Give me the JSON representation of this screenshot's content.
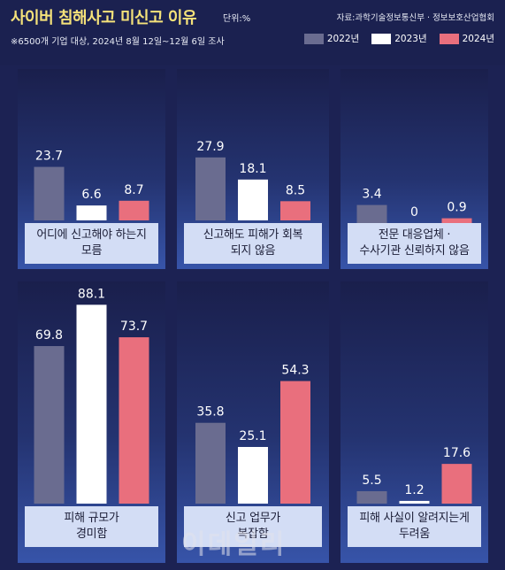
{
  "header": {
    "title": "사이버 침해사고 미신고 이유",
    "unit": "단위:%",
    "source": "자료:과학기술정보통신부 · 정보보호산업협회",
    "note": "※6500개 기업 대상, 2024년 8월 12일~12월 6일 조사"
  },
  "watermark": "이데일리",
  "chart_data": {
    "type": "bar",
    "unit": "%",
    "series": [
      {
        "name": "2022년",
        "color": "#6a6c90"
      },
      {
        "name": "2023년",
        "color": "#ffffff"
      },
      {
        "name": "2024년",
        "color": "#e96f7d"
      }
    ],
    "panels": [
      {
        "caption_lines": [
          "어디에 신고해야 하는지",
          "모름"
        ],
        "values": [
          23.7,
          6.6,
          8.7
        ],
        "labels": [
          "23.7",
          "6.6",
          "8.7"
        ]
      },
      {
        "caption_lines": [
          "신고해도 피해가 회복",
          "되지 않음"
        ],
        "values": [
          27.9,
          18.1,
          8.5
        ],
        "labels": [
          "27.9",
          "18.1",
          "8.5"
        ]
      },
      {
        "caption_lines": [
          "전문 대응업체 ·",
          "수사기관 신뢰하지 않음"
        ],
        "values": [
          3.4,
          0,
          0.9
        ],
        "labels": [
          "3.4",
          "0",
          "0.9"
        ]
      },
      {
        "caption_lines": [
          "피해 규모가",
          "경미함"
        ],
        "values": [
          69.8,
          88.1,
          73.7
        ],
        "labels": [
          "69.8",
          "88.1",
          "73.7"
        ]
      },
      {
        "caption_lines": [
          "신고 업무가",
          "복잡함"
        ],
        "values": [
          35.8,
          25.1,
          54.3
        ],
        "labels": [
          "35.8",
          "25.1",
          "54.3"
        ]
      },
      {
        "caption_lines": [
          "피해 사실이 알려지는게",
          "두려움"
        ],
        "values": [
          5.5,
          1.2,
          17.6
        ],
        "labels": [
          "5.5",
          "1.2",
          "17.6"
        ]
      }
    ]
  }
}
